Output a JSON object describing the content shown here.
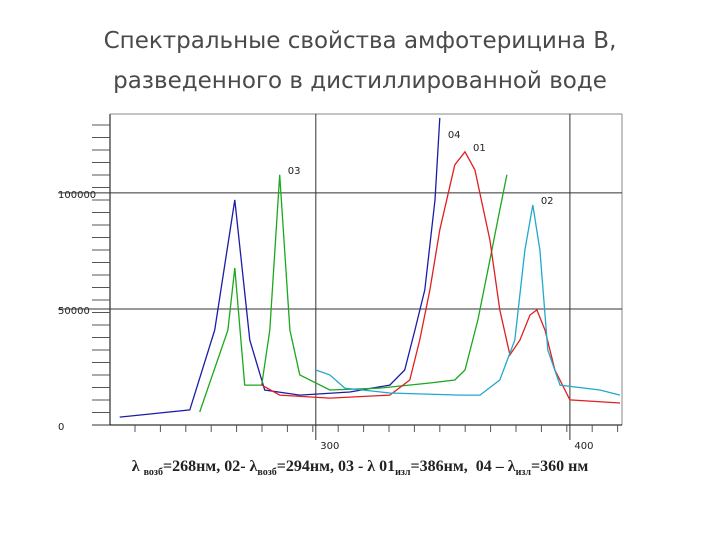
{
  "chart_data": {
    "type": "line",
    "title": [
      "Спектральные свойства амфотерицина В,",
      "разведенного в дистиллированной воде"
    ],
    "caption": [
      {
        "text": "λ "
      },
      {
        "sub": "возб"
      },
      {
        "text": "=268нм, 02- λ"
      },
      {
        "sub": "возб"
      },
      {
        "text": "=294нм, 03 - λ 01"
      },
      {
        "sub": "изл"
      },
      {
        "text": "=386нм,  04 – λ"
      },
      {
        "sub": "изл"
      },
      {
        "text": "=360 нм"
      }
    ],
    "xlim": [
      219,
      420.5
    ],
    "ylim": [
      0,
      134000
    ],
    "xticks": [
      300,
      400
    ],
    "yticks": [
      0,
      50000,
      100000
    ],
    "grid": true,
    "series": [
      {
        "name": "04",
        "color": "#1c1ca8",
        "x": [
          222.8,
          250.4,
          260.2,
          268.1,
          274.0,
          279.9,
          293.7,
          313.4,
          329.1,
          335.0,
          339.0,
          342.9,
          346.9,
          348.8
        ],
        "values": [
          3400,
          6500,
          40900,
          97000,
          36600,
          15100,
          12900,
          14200,
          17200,
          23700,
          40900,
          58200,
          97000,
          132300
        ]
      },
      {
        "name": "03",
        "color": "#1ca81c",
        "x": [
          254.3,
          265.4,
          268.1,
          272.0,
          278.7,
          281.9,
          285.8,
          289.8,
          293.7,
          305.5,
          325.2,
          344.9,
          354.7,
          358.7,
          363.8,
          368.5,
          372.4,
          375.2
        ],
        "values": [
          5600,
          40900,
          67700,
          17200,
          17200,
          40900,
          107800,
          40900,
          21600,
          15100,
          15900,
          18100,
          19400,
          23700,
          45300,
          71100,
          92700,
          107800
        ]
      },
      {
        "name": "01",
        "color": "#e02020",
        "x": [
          278.7,
          285.8,
          305.5,
          329.1,
          337.0,
          340.9,
          344.9,
          348.8,
          354.7,
          358.7,
          362.6,
          368.5,
          372.4,
          376.4,
          380.3,
          384.3,
          387.0,
          390.2,
          394.1,
          400.0,
          419.7
        ],
        "values": [
          17200,
          12900,
          11600,
          12900,
          19400,
          36600,
          58200,
          84100,
          112100,
          117700,
          109900,
          79700,
          49600,
          30200,
          36600,
          47400,
          49600,
          40900,
          23700,
          10800,
          9500
        ]
      },
      {
        "name": "02",
        "color": "#22a8cc",
        "x": [
          300.0,
          305.5,
          311.4,
          329.1,
          356.7,
          364.6,
          372.4,
          378.3,
          382.3,
          385.4,
          388.2,
          391.3,
          396.1,
          411.8,
          419.7
        ],
        "values": [
          23700,
          21600,
          15900,
          13800,
          12900,
          12900,
          19400,
          36600,
          75400,
          94800,
          75400,
          32300,
          17200,
          15100,
          12900
        ]
      }
    ]
  }
}
